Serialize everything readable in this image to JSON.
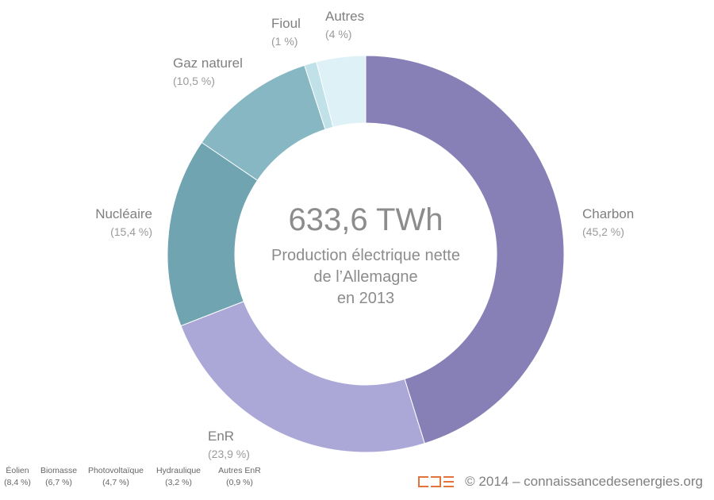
{
  "chart_data": {
    "type": "pie",
    "variant": "donut",
    "center": {
      "total": "633,6 TWh",
      "description_lines": [
        "Production électrique nette",
        "de l’Allemagne",
        "en 2013"
      ]
    },
    "slices": [
      {
        "name": "Charbon",
        "value": 45.2,
        "pct_label": "(45,2 %)",
        "color": "#8680b7"
      },
      {
        "name": "EnR",
        "value": 23.9,
        "pct_label": "(23,9 %)",
        "color": "#aba8d8"
      },
      {
        "name": "Nucléaire",
        "value": 15.4,
        "pct_label": "(15,4 %)",
        "color": "#6fa4b0"
      },
      {
        "name": "Gaz naturel",
        "value": 10.5,
        "pct_label": "(10,5 %)",
        "color": "#86b7c3"
      },
      {
        "name": "Fioul",
        "value": 1.0,
        "pct_label": "(1 %)",
        "color": "#bfe1e7"
      },
      {
        "name": "Autres",
        "value": 4.0,
        "pct_label": "(4 %)",
        "color": "#ddf1f6"
      }
    ],
    "enr_breakdown": [
      {
        "name": "Éolien",
        "value": 8.4,
        "pct_label": "(8,4 %)"
      },
      {
        "name": "Biomasse",
        "value": 6.7,
        "pct_label": "(6,7 %)"
      },
      {
        "name": "Photovoltaïque",
        "value": 4.7,
        "pct_label": "(4,7 %)"
      },
      {
        "name": "Hydraulique",
        "value": 3.2,
        "pct_label": "(3,2 %)"
      },
      {
        "name": "Autres EnR",
        "value": 0.9,
        "pct_label": "(0,9 %)"
      }
    ]
  },
  "footer": {
    "copyright": "© 2014 – connaissancedesenergies.org",
    "logo_colors": {
      "accent": "#e2733a"
    }
  }
}
